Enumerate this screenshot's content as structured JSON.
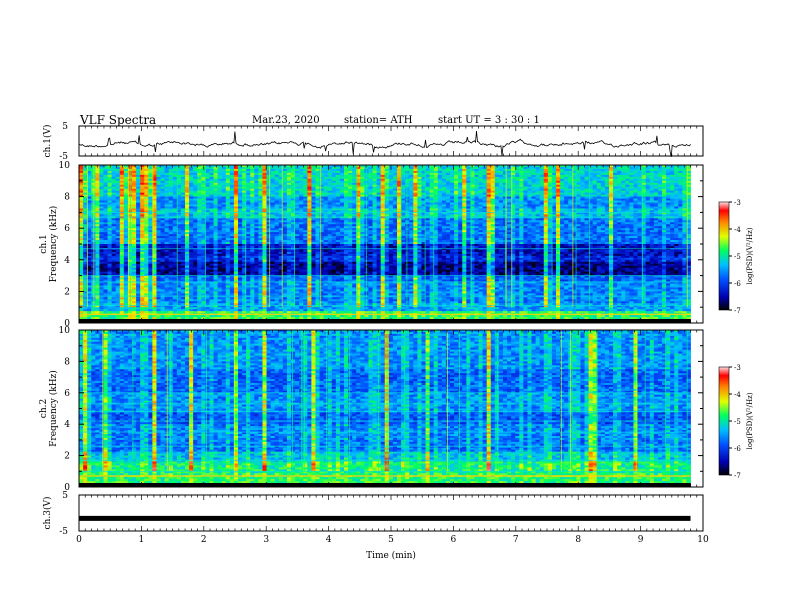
{
  "header": {
    "title": "VLF  Spectra",
    "date": "Mar.23, 2020",
    "station": "station= ATH",
    "start": "start  UT  =    3  : 30 : 1"
  },
  "chart_data": [
    {
      "type": "line",
      "name": "ch1-waveform",
      "ylabel": "ch.1(V)",
      "yticks": [
        "5",
        "-5"
      ],
      "ylim": [
        -5,
        5
      ],
      "description_values": "noisy trace centered near 0 V with spikes"
    },
    {
      "type": "heatmap",
      "name": "ch1-spectrogram",
      "ylabel_lines": [
        "ch.1",
        "Frequency (kHz)"
      ],
      "yticks": [
        "0",
        "2",
        "4",
        "6",
        "8",
        "10"
      ],
      "ylim": [
        0,
        10
      ],
      "xlim": [
        0,
        9.8
      ],
      "colorbar": {
        "label": "log(PSD)(V²/Hz)",
        "ticks": [
          "-3",
          "-4",
          "-5",
          "-6",
          "-7"
        ],
        "range": [
          -7,
          -3
        ]
      }
    },
    {
      "type": "heatmap",
      "name": "ch2-spectrogram",
      "ylabel_lines": [
        "ch.2",
        "Frequency (kHz)"
      ],
      "yticks": [
        "0",
        "2",
        "4",
        "6",
        "8",
        "10"
      ],
      "ylim": [
        0,
        10
      ],
      "xlim": [
        0,
        9.8
      ],
      "colorbar": {
        "label": "log(PSD)(V²/Hz)",
        "ticks": [
          "-3",
          "-4",
          "-5",
          "-6",
          "-7"
        ],
        "range": [
          -7,
          -3
        ]
      }
    },
    {
      "type": "line",
      "name": "ch3-waveform",
      "ylabel": "ch.3(V)",
      "yticks": [
        "5",
        "-5"
      ],
      "ylim": [
        -5,
        5
      ],
      "x": [
        0,
        9.8
      ],
      "y": [
        -1.5,
        -1.5
      ]
    }
  ],
  "xaxis": {
    "label": "Time  (min)",
    "ticks": [
      "0",
      "1",
      "2",
      "3",
      "4",
      "5",
      "6",
      "7",
      "8",
      "9",
      "10"
    ],
    "xlim": [
      0,
      10
    ]
  }
}
